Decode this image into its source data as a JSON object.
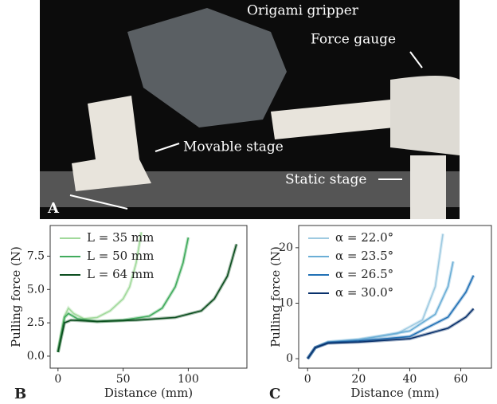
{
  "photo": {
    "panel": "A",
    "labels": [
      "Origami gripper",
      "Force gauge",
      "Movable stage",
      "Static stage"
    ]
  },
  "chart_data": [
    {
      "type": "line",
      "panel": "B",
      "xlabel": "Distance (mm)",
      "ylabel": "Pulling force (N)",
      "legend": "upper left",
      "xlim": [
        -6,
        145
      ],
      "ylim": [
        -0.9,
        9.8
      ],
      "xticks": [
        0,
        50,
        100
      ],
      "yticks": [
        {
          "value": 0,
          "label": "0.0"
        },
        2.5,
        {
          "value": 5,
          "label": "5.0"
        },
        7.5
      ],
      "series": [
        {
          "name": "L = 35 mm",
          "color": "#a1d99b",
          "x": [
            0,
            2,
            5,
            8,
            12,
            20,
            30,
            40,
            50,
            55,
            60,
            64
          ],
          "values": [
            0.3,
            1.5,
            3.0,
            3.6,
            3.2,
            2.8,
            2.9,
            3.4,
            4.3,
            5.2,
            7.0,
            9.3
          ]
        },
        {
          "name": "L = 50 mm",
          "color": "#41ab5d",
          "x": [
            0,
            5,
            8,
            15,
            30,
            50,
            70,
            80,
            90,
            96,
            100
          ],
          "values": [
            0.3,
            2.9,
            3.2,
            2.8,
            2.6,
            2.7,
            3.0,
            3.6,
            5.2,
            7.0,
            8.9
          ]
        },
        {
          "name": "L = 64 mm",
          "color": "#0b4d1e",
          "x": [
            0,
            5,
            10,
            30,
            60,
            90,
            110,
            120,
            130,
            137
          ],
          "values": [
            0.3,
            2.5,
            2.7,
            2.6,
            2.7,
            2.9,
            3.4,
            4.3,
            6.0,
            8.4
          ]
        }
      ]
    },
    {
      "type": "line",
      "panel": "C",
      "xlabel": "Distance (mm)",
      "ylabel": "Pulling force (N)",
      "legend": "upper left",
      "xlim": [
        -3.5,
        72
      ],
      "ylim": [
        -1.7,
        24
      ],
      "xticks": [
        0,
        20,
        40,
        60
      ],
      "yticks": [
        0,
        10,
        20
      ],
      "series": [
        {
          "name": "α = 22.0°",
          "color": "#9ecae1",
          "x": [
            0,
            3,
            8,
            20,
            35,
            45,
            50,
            53
          ],
          "values": [
            0,
            2,
            3,
            3.5,
            4.5,
            7,
            13,
            22.5
          ]
        },
        {
          "name": "α = 23.5°",
          "color": "#6baed6",
          "x": [
            0,
            3,
            8,
            20,
            40,
            50,
            55,
            57
          ],
          "values": [
            0,
            2,
            3,
            3.4,
            5,
            8,
            13,
            17.5
          ]
        },
        {
          "name": "α = 26.5°",
          "color": "#2171b5",
          "x": [
            0,
            3,
            8,
            20,
            40,
            55,
            62,
            65
          ],
          "values": [
            0,
            2,
            2.9,
            3.2,
            4,
            7.5,
            12,
            15
          ]
        },
        {
          "name": "α = 30.0°",
          "color": "#08306b",
          "x": [
            0,
            3,
            8,
            20,
            40,
            55,
            62,
            65
          ],
          "values": [
            0,
            2,
            2.8,
            3,
            3.6,
            5.5,
            7.5,
            9
          ]
        }
      ]
    }
  ]
}
